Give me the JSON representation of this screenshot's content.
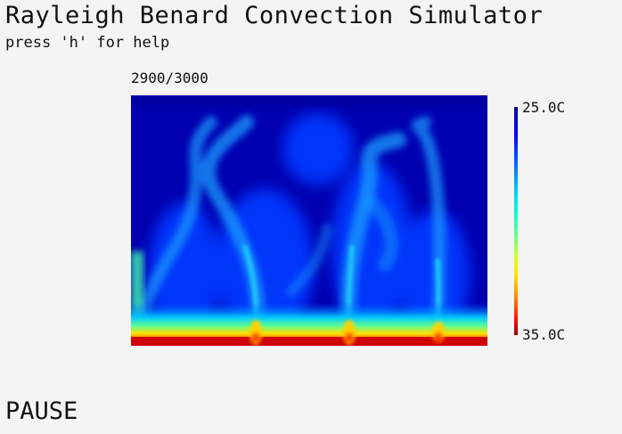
{
  "app": {
    "title": "Rayleigh Benard Convection Simulator",
    "help_hint": "press 'h' for help"
  },
  "simulation": {
    "step_counter": "2900/3000",
    "status": "PAUSE"
  },
  "colorbar": {
    "top_label": "25.0C",
    "bottom_label": "35.0C",
    "colors": [
      "#000090",
      "#0000ff",
      "#00c8ff",
      "#60ff90",
      "#ffe000",
      "#ff1000",
      "#900000"
    ]
  }
}
